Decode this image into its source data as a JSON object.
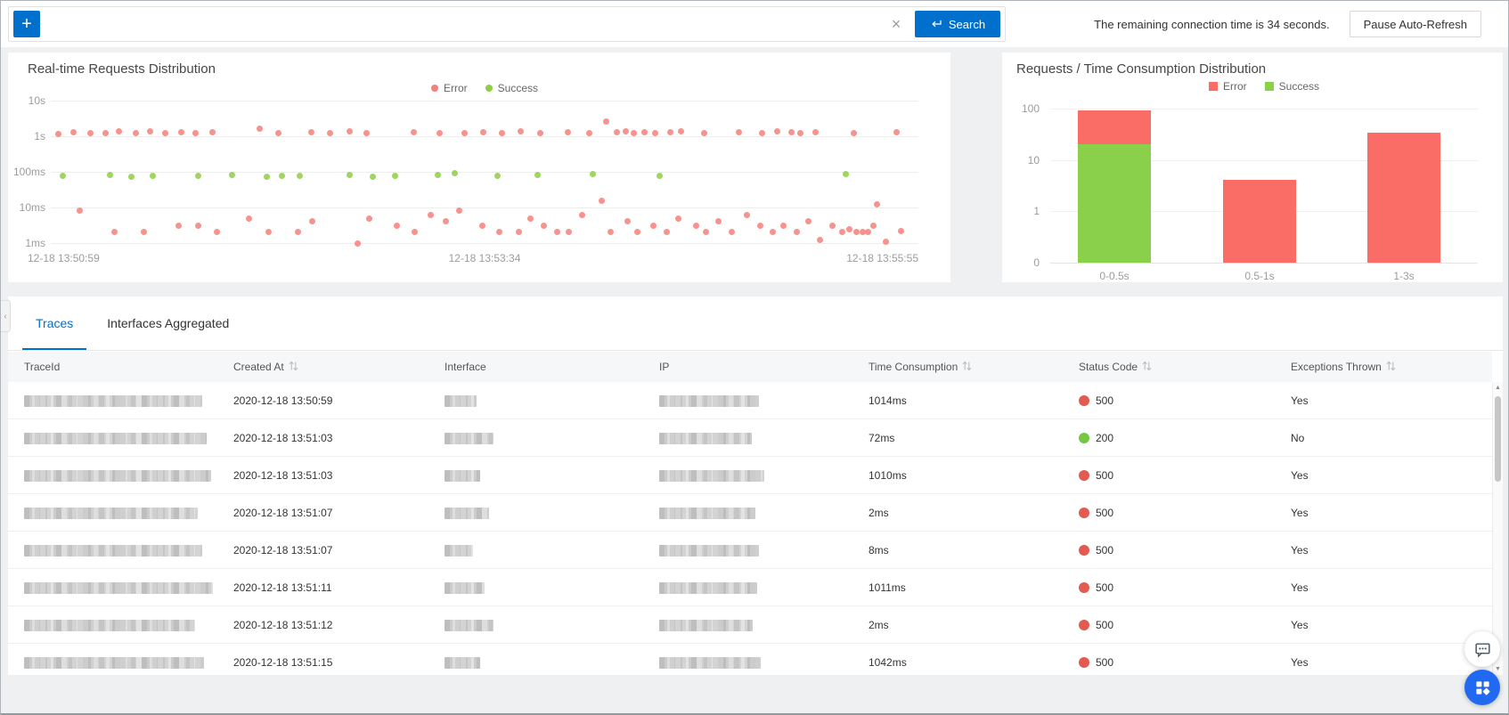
{
  "colors": {
    "accent_blue": "#0070cc",
    "scatter_error": "#f4807b",
    "scatter_success": "#8fce44",
    "bar_error": "#fa6d66",
    "bar_success": "#8bd04a",
    "status_red": "#e25a50",
    "status_green": "#74c740",
    "fab_blue": "#2269f2"
  },
  "icons": {
    "clear": "×",
    "collapse": "‹",
    "scroll_up": "▲",
    "scroll_down": "▼"
  },
  "topbar": {
    "add_button_label": "+",
    "search_value": "",
    "search_button_label": "Search",
    "status_text": "The remaining connection time is 34 seconds.",
    "pause_button_label": "Pause Auto-Refresh"
  },
  "tabs": [
    {
      "label": "Traces",
      "active": true
    },
    {
      "label": "Interfaces Aggregated",
      "active": false
    }
  ],
  "table": {
    "columns": [
      {
        "label": "TraceId",
        "sortable": false
      },
      {
        "label": "Created At",
        "sortable": true
      },
      {
        "label": "Interface",
        "sortable": false
      },
      {
        "label": "IP",
        "sortable": false
      },
      {
        "label": "Time Consumption",
        "sortable": true
      },
      {
        "label": "Status Code",
        "sortable": true
      },
      {
        "label": "Exceptions Thrown",
        "sortable": true
      }
    ],
    "rows": [
      {
        "created_at": "2020-12-18 13:50:59",
        "time": "1014ms",
        "status_code": "500",
        "status": "error",
        "exceptions": "Yes",
        "blur": {
          "trace": 200,
          "iface": 36,
          "ip": 112
        }
      },
      {
        "created_at": "2020-12-18 13:51:03",
        "time": "72ms",
        "status_code": "200",
        "status": "success",
        "exceptions": "No",
        "blur": {
          "trace": 205,
          "iface": 55,
          "ip": 104
        }
      },
      {
        "created_at": "2020-12-18 13:51:03",
        "time": "1010ms",
        "status_code": "500",
        "status": "error",
        "exceptions": "Yes",
        "blur": {
          "trace": 210,
          "iface": 40,
          "ip": 118
        }
      },
      {
        "created_at": "2020-12-18 13:51:07",
        "time": "2ms",
        "status_code": "500",
        "status": "error",
        "exceptions": "Yes",
        "blur": {
          "trace": 195,
          "iface": 50,
          "ip": 108
        }
      },
      {
        "created_at": "2020-12-18 13:51:07",
        "time": "8ms",
        "status_code": "500",
        "status": "error",
        "exceptions": "Yes",
        "blur": {
          "trace": 200,
          "iface": 32,
          "ip": 112
        }
      },
      {
        "created_at": "2020-12-18 13:51:11",
        "time": "1011ms",
        "status_code": "500",
        "status": "error",
        "exceptions": "Yes",
        "blur": {
          "trace": 212,
          "iface": 45,
          "ip": 110
        }
      },
      {
        "created_at": "2020-12-18 13:51:12",
        "time": "2ms",
        "status_code": "500",
        "status": "error",
        "exceptions": "Yes",
        "blur": {
          "trace": 192,
          "iface": 55,
          "ip": 105
        }
      },
      {
        "created_at": "2020-12-18 13:51:15",
        "time": "1042ms",
        "status_code": "500",
        "status": "error",
        "exceptions": "Yes",
        "blur": {
          "trace": 202,
          "iface": 40,
          "ip": 114
        }
      }
    ]
  },
  "chart_data": [
    {
      "type": "scatter",
      "title": "Real-time Requests Distribution",
      "legend_position": "top-center",
      "grid": true,
      "y_axis": {
        "scale": "log",
        "unit": "response time",
        "ticks": [
          {
            "label": "10s",
            "ms": 10000
          },
          {
            "label": "1s",
            "ms": 1000
          },
          {
            "label": "100ms",
            "ms": 100
          },
          {
            "label": "10ms",
            "ms": 10
          },
          {
            "label": "1ms",
            "ms": 1
          }
        ]
      },
      "x_axis": {
        "tick_labels": [
          "12-18 13:50:59",
          "12-18 13:53:34",
          "12-18 13:55:55"
        ]
      },
      "series": [
        {
          "name": "Error",
          "color": "#f4807b",
          "points": [
            [
              0.005,
              1150
            ],
            [
              0.022,
              1300
            ],
            [
              0.042,
              1250
            ],
            [
              0.06,
              1200
            ],
            [
              0.075,
              1350
            ],
            [
              0.095,
              1250
            ],
            [
              0.112,
              1400
            ],
            [
              0.13,
              1250
            ],
            [
              0.148,
              1300
            ],
            [
              0.165,
              1200
            ],
            [
              0.185,
              1300
            ],
            [
              0.24,
              1600
            ],
            [
              0.262,
              1250
            ],
            [
              0.3,
              1300
            ],
            [
              0.322,
              1200
            ],
            [
              0.345,
              1350
            ],
            [
              0.365,
              1250
            ],
            [
              0.42,
              1300
            ],
            [
              0.45,
              1250
            ],
            [
              0.48,
              1200
            ],
            [
              0.502,
              1300
            ],
            [
              0.523,
              1250
            ],
            [
              0.545,
              1350
            ],
            [
              0.568,
              1250
            ],
            [
              0.6,
              1300
            ],
            [
              0.625,
              1200
            ],
            [
              0.645,
              2600
            ],
            [
              0.658,
              1300
            ],
            [
              0.668,
              1350
            ],
            [
              0.678,
              1250
            ],
            [
              0.69,
              1300
            ],
            [
              0.703,
              1250
            ],
            [
              0.72,
              1300
            ],
            [
              0.733,
              1400
            ],
            [
              0.76,
              1250
            ],
            [
              0.8,
              1300
            ],
            [
              0.828,
              1250
            ],
            [
              0.845,
              1350
            ],
            [
              0.862,
              1300
            ],
            [
              0.872,
              1250
            ],
            [
              0.89,
              1300
            ],
            [
              0.935,
              1250
            ],
            [
              0.985,
              1300
            ],
            [
              0.03,
              8
            ],
            [
              0.07,
              2
            ],
            [
              0.105,
              2
            ],
            [
              0.145,
              3
            ],
            [
              0.168,
              3
            ],
            [
              0.19,
              2
            ],
            [
              0.228,
              5
            ],
            [
              0.25,
              2
            ],
            [
              0.285,
              2
            ],
            [
              0.302,
              4
            ],
            [
              0.355,
              1
            ],
            [
              0.368,
              5
            ],
            [
              0.4,
              3
            ],
            [
              0.421,
              2
            ],
            [
              0.44,
              6
            ],
            [
              0.458,
              4
            ],
            [
              0.473,
              8
            ],
            [
              0.5,
              3
            ],
            [
              0.52,
              2
            ],
            [
              0.543,
              2
            ],
            [
              0.557,
              5
            ],
            [
              0.572,
              3
            ],
            [
              0.588,
              2
            ],
            [
              0.602,
              2
            ],
            [
              0.617,
              6
            ],
            [
              0.64,
              15
            ],
            [
              0.65,
              2
            ],
            [
              0.67,
              4
            ],
            [
              0.682,
              2
            ],
            [
              0.7,
              3
            ],
            [
              0.716,
              2
            ],
            [
              0.73,
              5
            ],
            [
              0.75,
              3
            ],
            [
              0.762,
              2
            ],
            [
              0.777,
              4
            ],
            [
              0.792,
              2
            ],
            [
              0.81,
              6
            ],
            [
              0.825,
              3
            ],
            [
              0.84,
              2
            ],
            [
              0.853,
              3
            ],
            [
              0.868,
              2
            ],
            [
              0.882,
              4
            ],
            [
              0.895,
              1.2
            ],
            [
              0.91,
              3
            ],
            [
              0.921,
              2
            ],
            [
              0.93,
              2.5
            ],
            [
              0.938,
              2
            ],
            [
              0.945,
              2
            ],
            [
              0.952,
              2
            ],
            [
              0.958,
              3
            ],
            [
              0.962,
              12
            ],
            [
              0.972,
              1.1
            ],
            [
              0.99,
              2.2
            ]
          ]
        },
        {
          "name": "Success",
          "color": "#8fce44",
          "points": [
            [
              0.01,
              75
            ],
            [
              0.065,
              80
            ],
            [
              0.09,
              72
            ],
            [
              0.115,
              78
            ],
            [
              0.168,
              75
            ],
            [
              0.208,
              80
            ],
            [
              0.248,
              72
            ],
            [
              0.266,
              78
            ],
            [
              0.287,
              75
            ],
            [
              0.345,
              80
            ],
            [
              0.372,
              72
            ],
            [
              0.398,
              78
            ],
            [
              0.448,
              80
            ],
            [
              0.468,
              90
            ],
            [
              0.518,
              75
            ],
            [
              0.565,
              80
            ],
            [
              0.63,
              85
            ],
            [
              0.708,
              75
            ],
            [
              0.925,
              85
            ]
          ]
        }
      ]
    },
    {
      "type": "bar",
      "title": "Requests / Time Consumption Distribution",
      "stacked": true,
      "grid": true,
      "legend_position": "top-center",
      "categories": [
        "0-0.5s",
        "0.5-1s",
        "1-3s"
      ],
      "y_axis": {
        "scale": "log",
        "ticks": [
          {
            "label": "100",
            "v": 100
          },
          {
            "label": "10",
            "v": 10
          },
          {
            "label": "1",
            "v": 1
          },
          {
            "label": "0",
            "v": 0
          }
        ]
      },
      "series": [
        {
          "name": "Error",
          "color": "#fa6d66",
          "values": [
            73,
            4,
            34
          ]
        },
        {
          "name": "Success",
          "color": "#8bd04a",
          "values": [
            20,
            0,
            0
          ]
        }
      ]
    }
  ],
  "floating_buttons": [
    {
      "icon": "chat-bubble"
    },
    {
      "icon": "app-grid"
    }
  ]
}
